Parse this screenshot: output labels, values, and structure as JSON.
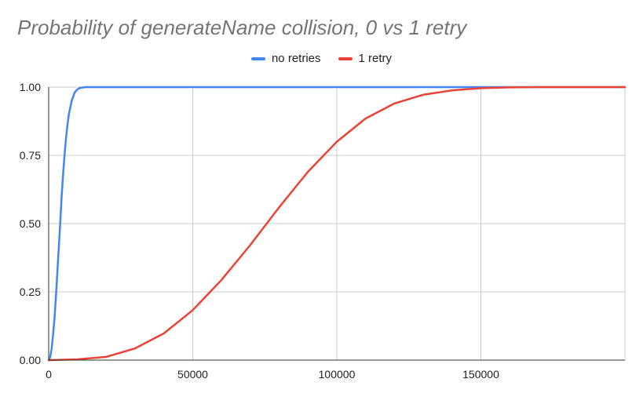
{
  "chart_data": {
    "type": "line",
    "title": "Probability of generateName collision, 0 vs 1 retry",
    "xlabel": "",
    "ylabel": "",
    "xlim": [
      0,
      200000
    ],
    "ylim": [
      0,
      1
    ],
    "x_ticks": [
      0,
      50000,
      100000,
      150000
    ],
    "x_tick_labels": [
      "0",
      "50000",
      "100000",
      "150000"
    ],
    "y_ticks": [
      0,
      0.25,
      0.5,
      0.75,
      1
    ],
    "y_tick_labels": [
      "0.00",
      "0.25",
      "0.50",
      "0.75",
      "1.00"
    ],
    "grid": true,
    "legend": "top-center",
    "series": [
      {
        "name": "no retries",
        "color": "#4285f4",
        "x": [
          0,
          500,
          1000,
          1500,
          2000,
          2500,
          3000,
          3500,
          4000,
          4500,
          5000,
          5500,
          6000,
          6500,
          7000,
          8000,
          9000,
          10000,
          11000,
          12000,
          13000,
          14000,
          15000,
          50000,
          100000,
          150000,
          200000
        ],
        "y": [
          0,
          0.01,
          0.04,
          0.09,
          0.15,
          0.23,
          0.32,
          0.41,
          0.5,
          0.6,
          0.68,
          0.75,
          0.81,
          0.86,
          0.9,
          0.95,
          0.98,
          0.992,
          0.997,
          0.999,
          1.0,
          1.0,
          1.0,
          1.0,
          1.0,
          1.0,
          1.0
        ]
      },
      {
        "name": "1 retry",
        "color": "#ea4335",
        "x": [
          0,
          10000,
          20000,
          30000,
          40000,
          50000,
          60000,
          70000,
          80000,
          90000,
          100000,
          110000,
          120000,
          130000,
          140000,
          150000,
          160000,
          170000,
          180000,
          190000,
          200000
        ],
        "y": [
          0,
          0.003,
          0.012,
          0.043,
          0.098,
          0.183,
          0.294,
          0.422,
          0.56,
          0.69,
          0.8,
          0.885,
          0.94,
          0.972,
          0.988,
          0.996,
          0.999,
          1.0,
          1.0,
          1.0,
          1.0
        ]
      }
    ]
  }
}
